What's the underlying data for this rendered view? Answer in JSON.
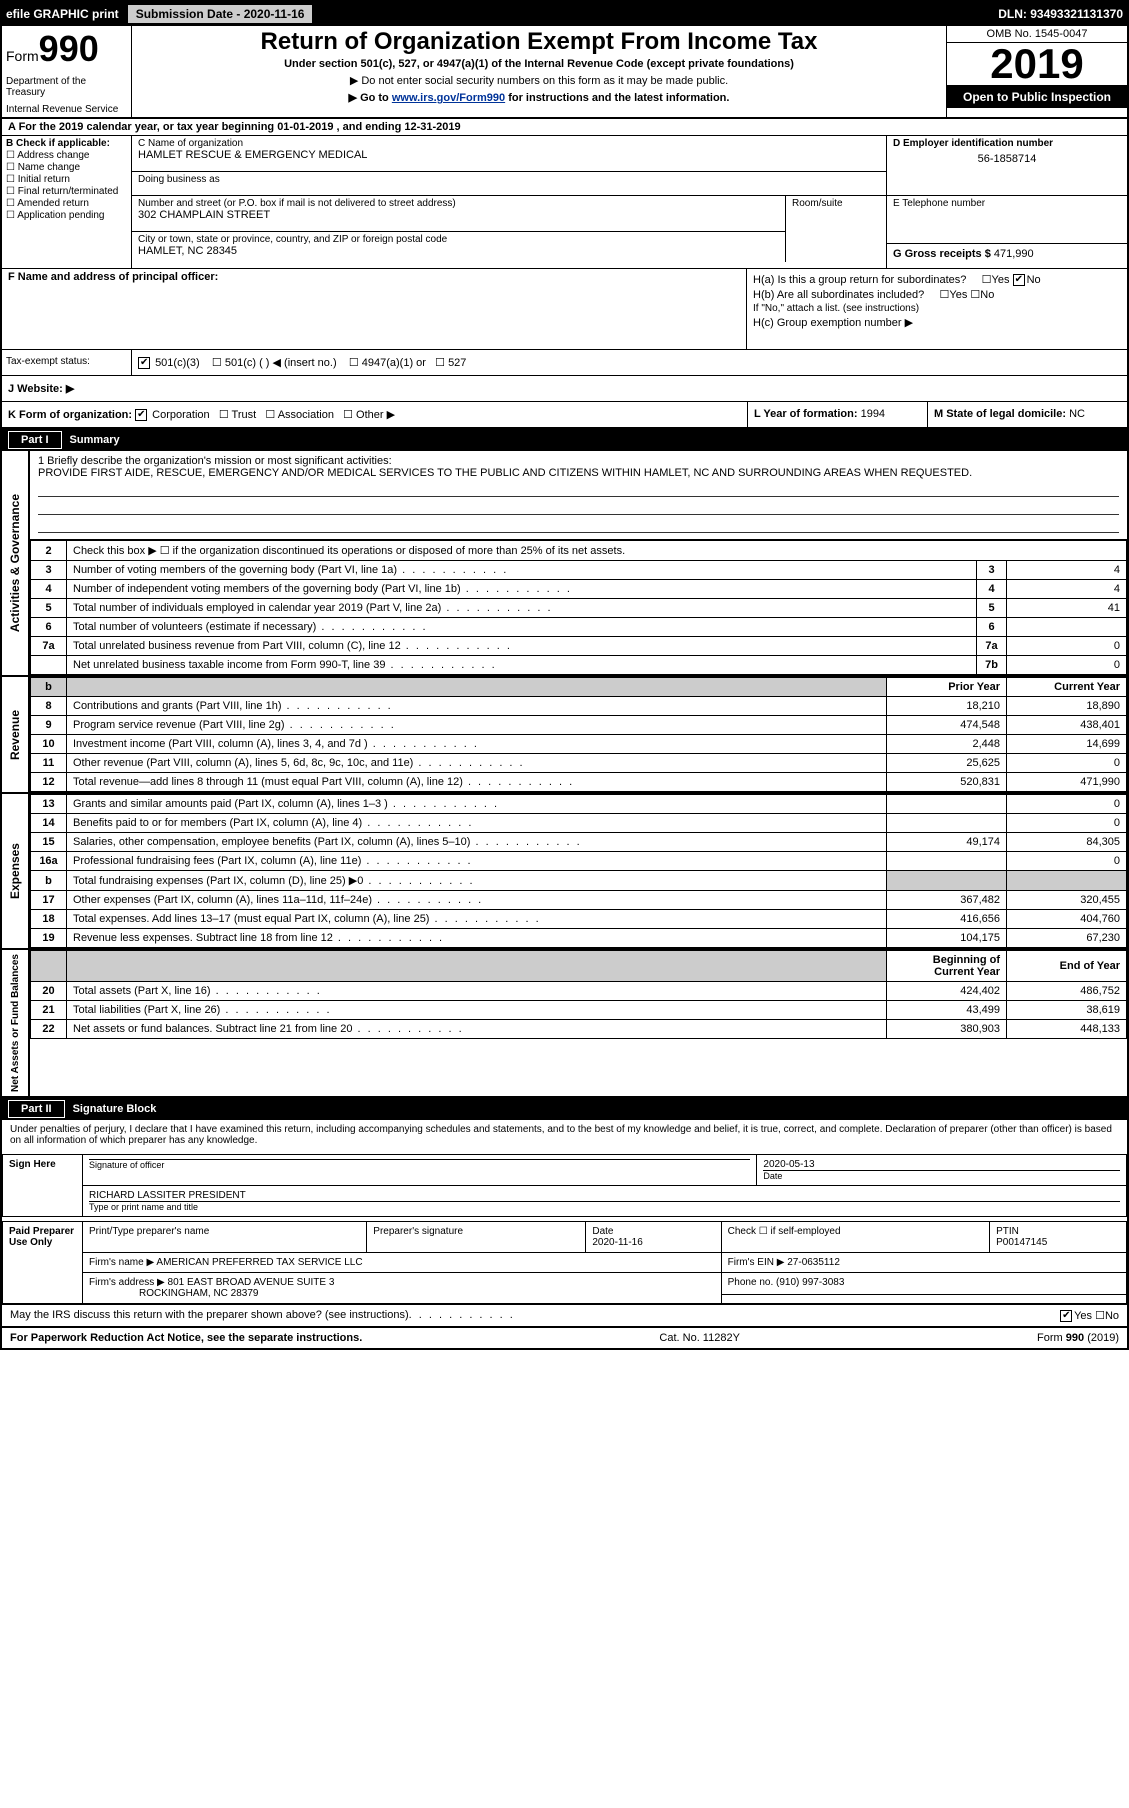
{
  "color": {
    "black": "#000000",
    "white": "#ffffff",
    "gray": "#cccccc",
    "link": "#003399"
  },
  "top": {
    "efile": "efile GRAPHIC print",
    "sub_label": "Submission Date - 2020-11-16",
    "dln": "DLN: 93493321131370"
  },
  "header": {
    "form": "Form",
    "num": "990",
    "title": "Return of Organization Exempt From Income Tax",
    "sub": "Under section 501(c), 527, or 4947(a)(1) of the Internal Revenue Code (except private foundations)",
    "note": "▶ Do not enter social security numbers on this form as it may be made public.",
    "goto_pre": "▶ Go to ",
    "goto_link": "www.irs.gov/Form990",
    "goto_post": " for instructions and the latest information.",
    "dept": "Department of the Treasury",
    "irs": "Internal Revenue Service",
    "omb": "OMB No. 1545-0047",
    "year": "2019",
    "open": "Open to Public Inspection"
  },
  "period": "A For the 2019 calendar year, or tax year beginning 01-01-2019    , and ending 12-31-2019",
  "b": {
    "label": "B Check if applicable:",
    "items": [
      "Address change",
      "Name change",
      "Initial return",
      "Final return/terminated",
      "Amended return",
      "Application pending"
    ]
  },
  "c": {
    "label": "C Name of organization",
    "name": "HAMLET RESCUE & EMERGENCY MEDICAL",
    "dba_label": "Doing business as",
    "street_label": "Number and street (or P.O. box if mail is not delivered to street address)",
    "street": "302 CHAMPLAIN STREET",
    "room_label": "Room/suite",
    "city_label": "City or town, state or province, country, and ZIP or foreign postal code",
    "city": "HAMLET, NC  28345"
  },
  "d": {
    "label": "D Employer identification number",
    "val": "56-1858714"
  },
  "e": {
    "label": "E Telephone number"
  },
  "g": {
    "label": "G Gross receipts $",
    "val": "471,990"
  },
  "f": {
    "label": "F  Name and address of principal officer:"
  },
  "h": {
    "a": "H(a)  Is this a group return for subordinates?",
    "b": "H(b)  Are all subordinates included?",
    "note": "If \"No,\" attach a list. (see instructions)",
    "c": "H(c)  Group exemption number ▶",
    "yes": "Yes",
    "no": "No"
  },
  "i": {
    "label": "Tax-exempt status:",
    "opts": [
      "501(c)(3)",
      "501(c) (  ) ◀ (insert no.)",
      "4947(a)(1) or",
      "527"
    ]
  },
  "j": {
    "label": "J   Website: ▶"
  },
  "k": {
    "label": "K Form of organization:",
    "opts": [
      "Corporation",
      "Trust",
      "Association",
      "Other ▶"
    ]
  },
  "l": {
    "label": "L Year of formation:",
    "val": "1994"
  },
  "m": {
    "label": "M State of legal domicile:",
    "val": "NC"
  },
  "part1": {
    "num": "Part I",
    "title": "Summary"
  },
  "mission": {
    "label": "1  Briefly describe the organization's mission or most significant activities:",
    "text": "PROVIDE FIRST AIDE, RESCUE, EMERGENCY AND/OR MEDICAL SERVICES TO THE PUBLIC AND CITIZENS WITHIN HAMLET, NC AND SURROUNDING AREAS WHEN REQUESTED."
  },
  "gov": {
    "line2": "Check this box ▶ ☐  if the organization discontinued its operations or disposed of more than 25% of its net assets.",
    "rows": [
      {
        "n": "3",
        "t": "Number of voting members of the governing body (Part VI, line 1a)",
        "b": "3",
        "v": "4"
      },
      {
        "n": "4",
        "t": "Number of independent voting members of the governing body (Part VI, line 1b)",
        "b": "4",
        "v": "4"
      },
      {
        "n": "5",
        "t": "Total number of individuals employed in calendar year 2019 (Part V, line 2a)",
        "b": "5",
        "v": "41"
      },
      {
        "n": "6",
        "t": "Total number of volunteers (estimate if necessary)",
        "b": "6",
        "v": ""
      },
      {
        "n": "7a",
        "t": "Total unrelated business revenue from Part VIII, column (C), line 12",
        "b": "7a",
        "v": "0"
      },
      {
        "n": "",
        "t": "Net unrelated business taxable income from Form 990-T, line 39",
        "b": "7b",
        "v": "0"
      }
    ]
  },
  "cols": {
    "prior": "Prior Year",
    "current": "Current Year",
    "begin": "Beginning of Current Year",
    "end": "End of Year"
  },
  "revenue": [
    {
      "n": "8",
      "t": "Contributions and grants (Part VIII, line 1h)",
      "p": "18,210",
      "c": "18,890"
    },
    {
      "n": "9",
      "t": "Program service revenue (Part VIII, line 2g)",
      "p": "474,548",
      "c": "438,401"
    },
    {
      "n": "10",
      "t": "Investment income (Part VIII, column (A), lines 3, 4, and 7d )",
      "p": "2,448",
      "c": "14,699"
    },
    {
      "n": "11",
      "t": "Other revenue (Part VIII, column (A), lines 5, 6d, 8c, 9c, 10c, and 11e)",
      "p": "25,625",
      "c": "0"
    },
    {
      "n": "12",
      "t": "Total revenue—add lines 8 through 11 (must equal Part VIII, column (A), line 12)",
      "p": "520,831",
      "c": "471,990"
    }
  ],
  "expenses": [
    {
      "n": "13",
      "t": "Grants and similar amounts paid (Part IX, column (A), lines 1–3 )",
      "p": "",
      "c": "0"
    },
    {
      "n": "14",
      "t": "Benefits paid to or for members (Part IX, column (A), line 4)",
      "p": "",
      "c": "0"
    },
    {
      "n": "15",
      "t": "Salaries, other compensation, employee benefits (Part IX, column (A), lines 5–10)",
      "p": "49,174",
      "c": "84,305"
    },
    {
      "n": "16a",
      "t": "Professional fundraising fees (Part IX, column (A), line 11e)",
      "p": "",
      "c": "0"
    },
    {
      "n": "b",
      "t": "Total fundraising expenses (Part IX, column (D), line 25) ▶0",
      "p": "GRAY",
      "c": "GRAY"
    },
    {
      "n": "17",
      "t": "Other expenses (Part IX, column (A), lines 11a–11d, 11f–24e)",
      "p": "367,482",
      "c": "320,455"
    },
    {
      "n": "18",
      "t": "Total expenses. Add lines 13–17 (must equal Part IX, column (A), line 25)",
      "p": "416,656",
      "c": "404,760"
    },
    {
      "n": "19",
      "t": "Revenue less expenses. Subtract line 18 from line 12",
      "p": "104,175",
      "c": "67,230"
    }
  ],
  "netassets": [
    {
      "n": "20",
      "t": "Total assets (Part X, line 16)",
      "p": "424,402",
      "c": "486,752"
    },
    {
      "n": "21",
      "t": "Total liabilities (Part X, line 26)",
      "p": "43,499",
      "c": "38,619"
    },
    {
      "n": "22",
      "t": "Net assets or fund balances. Subtract line 21 from line 20",
      "p": "380,903",
      "c": "448,133"
    }
  ],
  "sides": {
    "gov": "Activities & Governance",
    "rev": "Revenue",
    "exp": "Expenses",
    "net": "Net Assets or Fund Balances"
  },
  "part2": {
    "num": "Part II",
    "title": "Signature Block"
  },
  "sig": {
    "decl": "Under penalties of perjury, I declare that I have examined this return, including accompanying schedules and statements, and to the best of my knowledge and belief, it is true, correct, and complete. Declaration of preparer (other than officer) is based on all information of which preparer has any knowledge.",
    "sign_here": "Sign Here",
    "sig_officer": "Signature of officer",
    "date": "Date",
    "date_val": "2020-05-13",
    "name": "RICHARD LASSITER  PRESIDENT",
    "name_label": "Type or print name and title",
    "paid": "Paid Preparer Use Only",
    "prep_name_label": "Print/Type preparer's name",
    "prep_sig_label": "Preparer's signature",
    "prep_date_label": "Date",
    "prep_date": "2020-11-16",
    "check_self": "Check ☐ if self-employed",
    "ptin_label": "PTIN",
    "ptin": "P00147145",
    "firm_name_label": "Firm's name    ▶",
    "firm_name": "AMERICAN PREFERRED TAX SERVICE LLC",
    "firm_ein_label": "Firm's EIN ▶",
    "firm_ein": "27-0635112",
    "firm_addr_label": "Firm's address ▶",
    "firm_addr": "801 EAST BROAD AVENUE SUITE 3",
    "firm_city": "ROCKINGHAM, NC  28379",
    "phone_label": "Phone no.",
    "phone": "(910) 997-3083",
    "discuss": "May the IRS discuss this return with the preparer shown above? (see instructions)"
  },
  "footer": {
    "left": "For Paperwork Reduction Act Notice, see the separate instructions.",
    "mid": "Cat. No. 11282Y",
    "right": "Form 990 (2019)"
  }
}
